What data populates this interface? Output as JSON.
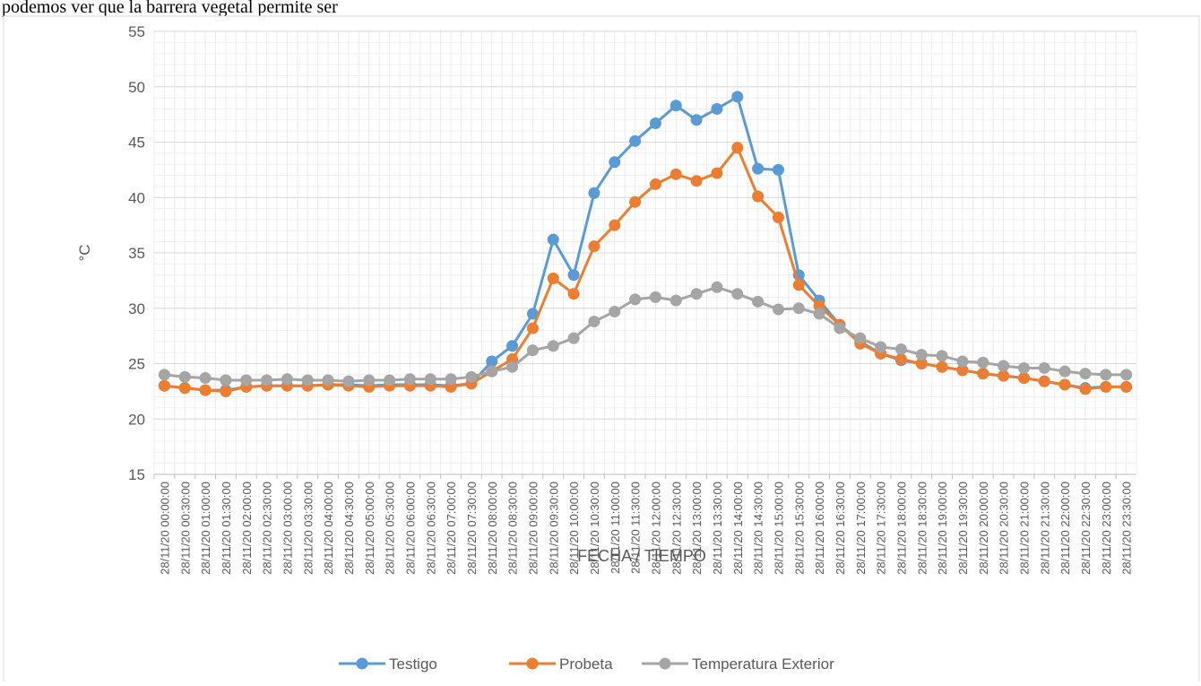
{
  "document_text": "podemos ver que la barrera vegetal permite ser",
  "chart_data": {
    "type": "line",
    "x_label": "FECHA / TIEMPO",
    "y_label": "°C",
    "categories": [
      "28/11/20 00:00:00",
      "28/11/20 00:30:00",
      "28/11/20 01:00:00",
      "28/11/20 01:30:00",
      "28/11/20 02:00:00",
      "28/11/20 02:30:00",
      "28/11/20 03:00:00",
      "28/11/20 03:30:00",
      "28/11/20 04:00:00",
      "28/11/20 04:30:00",
      "28/11/20 05:00:00",
      "28/11/20 05:30:00",
      "28/11/20 06:00:00",
      "28/11/20 06:30:00",
      "28/11/20 07:00:00",
      "28/11/20 07:30:00",
      "28/11/20 08:00:00",
      "28/11/20 08:30:00",
      "28/11/20 09:00:00",
      "28/11/20 09:30:00",
      "28/11/20 10:00:00",
      "28/11/20 10:30:00",
      "28/11/20 11:00:00",
      "28/11/20 11:30:00",
      "28/11/20 12:00:00",
      "28/11/20 12:30:00",
      "28/11/20 13:00:00",
      "28/11/20 13:30:00",
      "28/11/20 14:00:00",
      "28/11/20 14:30:00",
      "28/11/20 15:00:00",
      "28/11/20 15:30:00",
      "28/11/20 16:00:00",
      "28/11/20 16:30:00",
      "28/11/20 17:00:00",
      "28/11/20 17:30:00",
      "28/11/20 18:00:00",
      "28/11/20 18:30:00",
      "28/11/20 19:00:00",
      "28/11/20 19:30:00",
      "28/11/20 20:00:00",
      "28/11/20 20:30:00",
      "28/11/20 21:00:00",
      "28/11/20 21:30:00",
      "28/11/20 22:00:00",
      "28/11/20 22:30:00",
      "28/11/20 23:00:00",
      "28/11/20 23:30:00"
    ],
    "series": [
      {
        "name": "Testigo",
        "color": "#5b9bd5",
        "values": [
          23.0,
          22.8,
          22.6,
          22.6,
          22.9,
          23.0,
          23.0,
          23.0,
          23.1,
          23.1,
          23.0,
          23.1,
          23.1,
          23.1,
          23.0,
          23.2,
          25.2,
          26.6,
          29.5,
          36.2,
          33.0,
          40.4,
          43.2,
          45.1,
          46.7,
          48.3,
          47.0,
          48.0,
          49.1,
          42.6,
          42.5,
          33.0,
          30.7,
          28.5,
          27.0,
          25.9,
          25.3,
          25.0,
          24.7,
          24.4,
          24.1,
          23.9,
          23.7,
          23.4,
          23.1,
          22.8,
          22.9,
          22.9
        ]
      },
      {
        "name": "Probeta",
        "color": "#ed7d31",
        "values": [
          23.0,
          22.8,
          22.6,
          22.5,
          22.9,
          23.0,
          23.0,
          23.0,
          23.1,
          23.0,
          22.9,
          23.0,
          23.0,
          23.0,
          22.9,
          23.2,
          24.3,
          25.4,
          28.2,
          32.7,
          31.3,
          35.6,
          37.5,
          39.6,
          41.2,
          42.1,
          41.5,
          42.2,
          44.5,
          40.1,
          38.2,
          32.1,
          30.2,
          28.5,
          26.8,
          25.9,
          25.4,
          25.0,
          24.7,
          24.4,
          24.1,
          23.9,
          23.7,
          23.4,
          23.1,
          22.7,
          22.9,
          22.9
        ]
      },
      {
        "name": "Temperatura Exterior",
        "color": "#a5a5a5",
        "values": [
          24.0,
          23.8,
          23.7,
          23.5,
          23.5,
          23.5,
          23.6,
          23.5,
          23.5,
          23.4,
          23.5,
          23.5,
          23.6,
          23.6,
          23.6,
          23.8,
          24.3,
          24.7,
          26.2,
          26.6,
          27.3,
          28.8,
          29.7,
          30.8,
          31.0,
          30.7,
          31.3,
          31.9,
          31.3,
          30.6,
          29.9,
          30.0,
          29.5,
          28.2,
          27.3,
          26.5,
          26.3,
          25.8,
          25.7,
          25.2,
          25.1,
          24.8,
          24.6,
          24.6,
          24.3,
          24.1,
          24.0,
          24.0
        ]
      }
    ],
    "ylim": [
      15,
      55
    ],
    "yticks": [
      15,
      20,
      25,
      30,
      35,
      40,
      45,
      50,
      55
    ],
    "grid": true,
    "legend": "bottom"
  }
}
